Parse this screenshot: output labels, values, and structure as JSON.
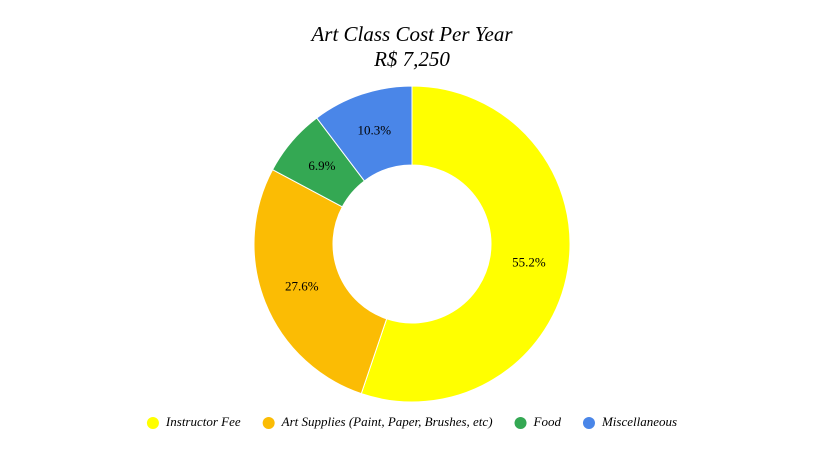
{
  "chart_data": {
    "type": "donut",
    "title": "Art Class Cost Per Year",
    "subtitle": "R$ 7,250",
    "categories": [
      "Instructor Fee",
      "Art Supplies (Paint, Paper, Brushes, etc)",
      "Food",
      "Miscellaneous"
    ],
    "values": [
      55.2,
      27.6,
      6.9,
      10.3
    ],
    "value_labels": [
      "55.2%",
      "27.6%",
      "6.9%",
      "10.3%"
    ],
    "colors": [
      "#ffff00",
      "#fbbc04",
      "#34a853",
      "#4a86e8"
    ],
    "legend_position": "bottom"
  }
}
